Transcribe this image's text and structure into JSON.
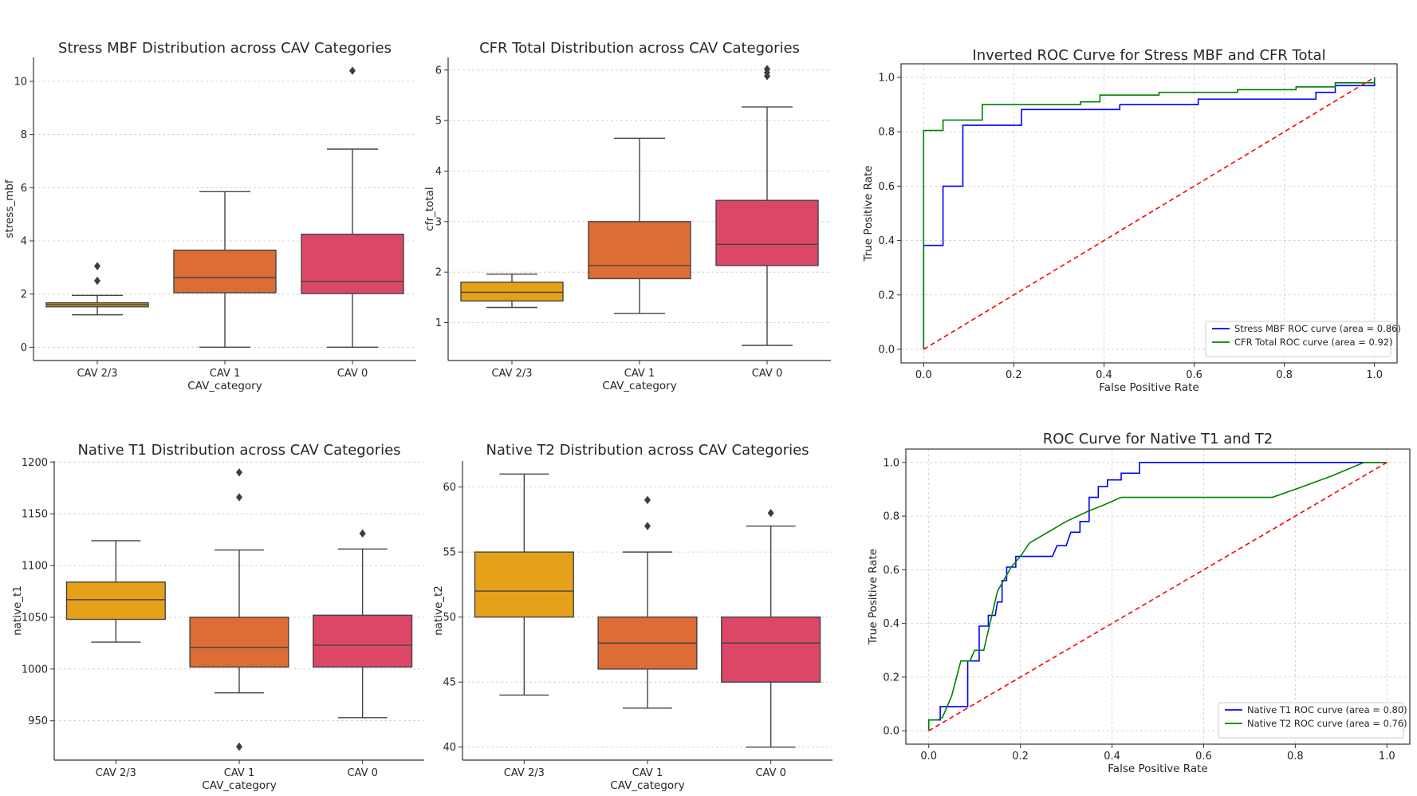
{
  "chart_data": [
    {
      "id": "stress",
      "type": "box",
      "title": "Stress MBF Distribution across CAV Categories",
      "xlabel": "CAV_category",
      "ylabel": "stress_mbf",
      "categories": [
        "CAV 2/3",
        "CAV 1",
        "CAV 0"
      ],
      "ylim": [
        -0.5,
        10.9
      ],
      "yticks": [
        0,
        2,
        4,
        6,
        8,
        10
      ],
      "grid": true,
      "boxes": [
        {
          "category": "CAV 2/3",
          "color": "#e5a119",
          "whisker_low": 1.22,
          "q1": 1.52,
          "median": 1.6,
          "q3": 1.67,
          "whisker_high": 1.95,
          "outliers": [
            2.5,
            3.05
          ]
        },
        {
          "category": "CAV 1",
          "color": "#dd6c35",
          "whisker_low": 0.0,
          "q1": 2.05,
          "median": 2.62,
          "q3": 3.65,
          "whisker_high": 5.85,
          "outliers": []
        },
        {
          "category": "CAV 0",
          "color": "#dd4767",
          "whisker_low": 0.0,
          "q1": 2.02,
          "median": 2.48,
          "q3": 4.25,
          "whisker_high": 7.45,
          "outliers": [
            10.4
          ]
        }
      ]
    },
    {
      "id": "cfr",
      "type": "box",
      "title": "CFR Total Distribution across CAV Categories",
      "xlabel": "CAV_category",
      "ylabel": "cfr_total",
      "categories": [
        "CAV 2/3",
        "CAV 1",
        "CAV 0"
      ],
      "ylim": [
        0.25,
        6.25
      ],
      "yticks": [
        1,
        2,
        3,
        4,
        5,
        6
      ],
      "grid": true,
      "boxes": [
        {
          "category": "CAV 2/3",
          "color": "#e5a119",
          "whisker_low": 1.3,
          "q1": 1.43,
          "median": 1.6,
          "q3": 1.8,
          "whisker_high": 1.96,
          "outliers": []
        },
        {
          "category": "CAV 1",
          "color": "#dd6c35",
          "whisker_low": 1.18,
          "q1": 1.87,
          "median": 2.13,
          "q3": 3.0,
          "whisker_high": 4.65,
          "outliers": []
        },
        {
          "category": "CAV 0",
          "color": "#dd4767",
          "whisker_low": 0.55,
          "q1": 2.13,
          "median": 2.55,
          "q3": 3.42,
          "whisker_high": 5.27,
          "outliers": [
            5.88,
            5.95,
            6.02
          ]
        }
      ]
    },
    {
      "id": "roc1",
      "type": "line",
      "title": "Inverted ROC Curve for Stress MBF and CFR Total",
      "xlabel": "False Positive Rate",
      "ylabel": "True Positive Rate",
      "xlim": [
        -0.05,
        1.05
      ],
      "ylim": [
        -0.05,
        1.05
      ],
      "xticks": [
        0.0,
        0.2,
        0.4,
        0.6,
        0.8,
        1.0
      ],
      "yticks": [
        0.0,
        0.2,
        0.4,
        0.6,
        0.8,
        1.0
      ],
      "grid": true,
      "legend_position": "lower-right",
      "series": [
        {
          "name": "Stress MBF ROC curve (area = 0.86)",
          "color": "#0000ff",
          "style": "solid",
          "x": [
            0,
            0,
            0.043,
            0.043,
            0.087,
            0.087,
            0.217,
            0.217,
            0.435,
            0.435,
            0.609,
            0.609,
            0.87,
            0.87,
            0.913,
            0.913,
            1.0,
            1.0
          ],
          "y": [
            0,
            0.382,
            0.382,
            0.6,
            0.6,
            0.824,
            0.824,
            0.882,
            0.882,
            0.9,
            0.9,
            0.92,
            0.92,
            0.945,
            0.945,
            0.97,
            0.97,
            1.0
          ]
        },
        {
          "name": "CFR Total ROC curve (area = 0.92)",
          "color": "#008000",
          "style": "solid",
          "x": [
            0,
            0,
            0.043,
            0.043,
            0.13,
            0.13,
            0.348,
            0.348,
            0.391,
            0.391,
            0.522,
            0.522,
            0.696,
            0.696,
            0.826,
            0.826,
            0.913,
            0.913,
            1.0,
            1.0
          ],
          "y": [
            0,
            0.805,
            0.805,
            0.843,
            0.843,
            0.9,
            0.9,
            0.91,
            0.91,
            0.935,
            0.935,
            0.945,
            0.945,
            0.955,
            0.955,
            0.965,
            0.965,
            0.98,
            0.98,
            1.0
          ]
        },
        {
          "name": "",
          "color": "#ff0000",
          "style": "dashed",
          "x": [
            0,
            1
          ],
          "y": [
            0,
            1
          ]
        }
      ]
    },
    {
      "id": "t1",
      "type": "box",
      "title": "Native T1 Distribution across CAV Categories",
      "xlabel": "CAV_category",
      "ylabel": "native_t1",
      "categories": [
        "CAV 2/3",
        "CAV 1",
        "CAV 0"
      ],
      "ylim": [
        912,
        1201
      ],
      "yticks": [
        950,
        1000,
        1050,
        1100,
        1150,
        1200
      ],
      "grid": true,
      "boxes": [
        {
          "category": "CAV 2/3",
          "color": "#e5a119",
          "whisker_low": 1026,
          "q1": 1048,
          "median": 1067,
          "q3": 1084,
          "whisker_high": 1124,
          "outliers": []
        },
        {
          "category": "CAV 1",
          "color": "#dd6c35",
          "whisker_low": 977,
          "q1": 1002,
          "median": 1021,
          "q3": 1050,
          "whisker_high": 1115,
          "outliers": [
            925,
            1166,
            1190
          ]
        },
        {
          "category": "CAV 0",
          "color": "#dd4767",
          "whisker_low": 953,
          "q1": 1002,
          "median": 1023,
          "q3": 1052,
          "whisker_high": 1116,
          "outliers": [
            1131
          ]
        }
      ]
    },
    {
      "id": "t2",
      "type": "box",
      "title": "Native T2 Distribution across CAV Categories",
      "xlabel": "CAV_category",
      "ylabel": "native_t2",
      "categories": [
        "CAV 2/3",
        "CAV 1",
        "CAV 0"
      ],
      "ylim": [
        39.0,
        62.0
      ],
      "yticks": [
        40,
        45,
        50,
        55,
        60
      ],
      "grid": true,
      "boxes": [
        {
          "category": "CAV 2/3",
          "color": "#e5a119",
          "whisker_low": 44,
          "q1": 50,
          "median": 52,
          "q3": 55,
          "whisker_high": 61,
          "outliers": []
        },
        {
          "category": "CAV 1",
          "color": "#dd6c35",
          "whisker_low": 43,
          "q1": 46,
          "median": 48,
          "q3": 50,
          "whisker_high": 55,
          "outliers": [
            57,
            59
          ]
        },
        {
          "category": "CAV 0",
          "color": "#dd4767",
          "whisker_low": 40,
          "q1": 45,
          "median": 48,
          "q3": 50,
          "whisker_high": 57,
          "outliers": [
            58
          ]
        }
      ]
    },
    {
      "id": "roc2",
      "type": "line",
      "title": "ROC Curve for Native T1 and T2",
      "xlabel": "False Positive Rate",
      "ylabel": "True Positive Rate",
      "xlim": [
        -0.05,
        1.05
      ],
      "ylim": [
        -0.05,
        1.05
      ],
      "xticks": [
        0.0,
        0.2,
        0.4,
        0.6,
        0.8,
        1.0
      ],
      "yticks": [
        0.0,
        0.2,
        0.4,
        0.6,
        0.8,
        1.0
      ],
      "grid": true,
      "legend_position": "lower-right",
      "series": [
        {
          "name": "Native T1 ROC curve (area = 0.80)",
          "color": "#0000ff",
          "style": "solid",
          "x": [
            0,
            0,
            0.025,
            0.025,
            0.085,
            0.085,
            0.11,
            0.11,
            0.13,
            0.13,
            0.145,
            0.15,
            0.16,
            0.16,
            0.17,
            0.17,
            0.19,
            0.19,
            0.27,
            0.28,
            0.3,
            0.31,
            0.33,
            0.33,
            0.35,
            0.35,
            0.37,
            0.37,
            0.39,
            0.39,
            0.42,
            0.42,
            0.46,
            0.46,
            1.0
          ],
          "y": [
            0,
            0.04,
            0.04,
            0.09,
            0.09,
            0.26,
            0.26,
            0.39,
            0.39,
            0.43,
            0.43,
            0.48,
            0.48,
            0.56,
            0.56,
            0.61,
            0.61,
            0.65,
            0.65,
            0.69,
            0.69,
            0.74,
            0.74,
            0.78,
            0.78,
            0.87,
            0.87,
            0.91,
            0.91,
            0.935,
            0.935,
            0.96,
            0.96,
            1.0,
            1.0
          ]
        },
        {
          "name": "Native T2 ROC curve (area = 0.76)",
          "color": "#008000",
          "style": "solid",
          "x": [
            0,
            0,
            0.02,
            0.03,
            0.05,
            0.07,
            0.09,
            0.1,
            0.12,
            0.15,
            0.18,
            0.2,
            0.22,
            0.26,
            0.3,
            0.35,
            0.38,
            0.42,
            0.5,
            0.6,
            0.7,
            0.75,
            0.8,
            0.88,
            0.95,
            1.0
          ],
          "y": [
            0,
            0.04,
            0.04,
            0.05,
            0.13,
            0.26,
            0.26,
            0.3,
            0.3,
            0.52,
            0.61,
            0.65,
            0.7,
            0.74,
            0.78,
            0.82,
            0.84,
            0.87,
            0.87,
            0.87,
            0.87,
            0.87,
            0.9,
            0.95,
            1.0,
            1.0
          ]
        },
        {
          "name": "",
          "color": "#ff0000",
          "style": "dashed",
          "x": [
            0,
            1
          ],
          "y": [
            0,
            1
          ]
        }
      ]
    }
  ]
}
